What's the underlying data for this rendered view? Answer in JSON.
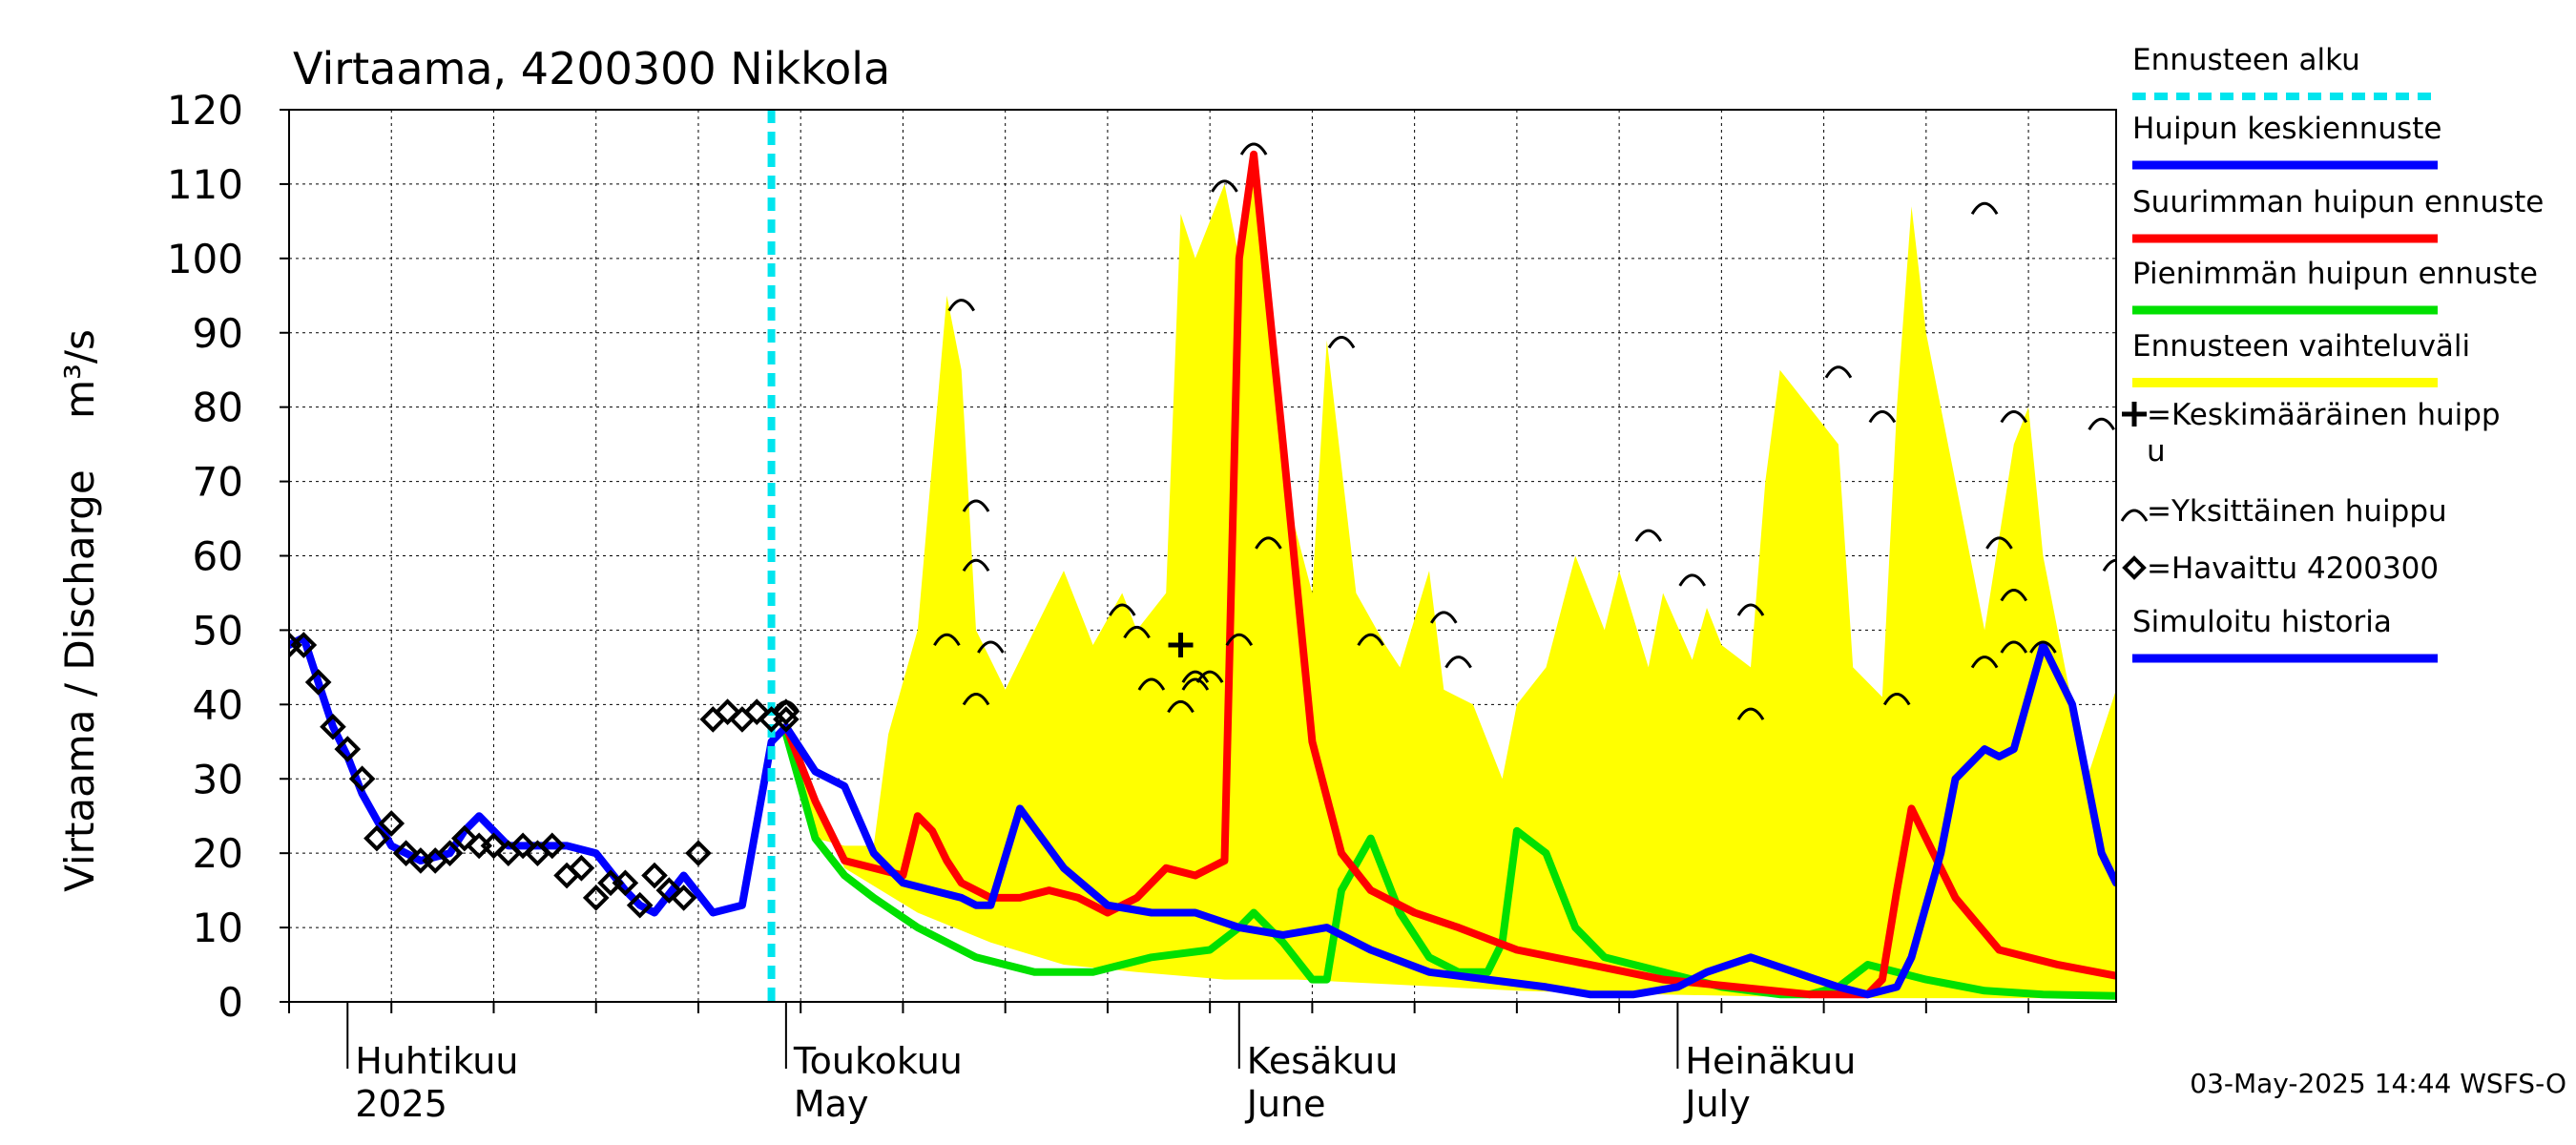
{
  "colors": {
    "forecast_start": "#00e5ee",
    "median_peak": "#0000ff",
    "max_peak": "#ff0000",
    "min_peak": "#00e000",
    "range": "#ffff00",
    "simulated": "#0000ff",
    "observed": "#000000"
  },
  "chart_data": {
    "type": "line",
    "title": "Virtaama, 4200300 Nikkola",
    "ylabel": "Virtaama / Discharge    m³/s",
    "ylim": [
      0,
      120
    ],
    "yticks": [
      0,
      10,
      20,
      30,
      40,
      50,
      60,
      70,
      80,
      90,
      100,
      110,
      120
    ],
    "xlim": [
      "2025-03-28",
      "2025-07-31"
    ],
    "grid": true,
    "legend_position": "right",
    "x_month_labels": [
      {
        "date": "2025-04-01",
        "fi": "Huhtikuu",
        "en": "2025"
      },
      {
        "date": "2025-05-01",
        "fi": "Toukokuu",
        "en": "May"
      },
      {
        "date": "2025-06-01",
        "fi": "Kesäkuu",
        "en": "June"
      },
      {
        "date": "2025-07-01",
        "fi": "Heinäkuu",
        "en": "July"
      }
    ],
    "forecast_start": "2025-04-30",
    "footer": "03-May-2025 14:44 WSFS-O",
    "legend": [
      {
        "key": "forecast_start",
        "label": "Ennusteen alku"
      },
      {
        "key": "median_peak",
        "label": "Huipun keskiennuste"
      },
      {
        "key": "max_peak",
        "label": "Suurimman huipun ennuste"
      },
      {
        "key": "min_peak",
        "label": "Pienimmän huipun ennuste"
      },
      {
        "key": "range",
        "label": "Ennusteen vaihteluväli"
      },
      {
        "key": "mean_peak_marker",
        "label": "=Keskimääräinen huipp",
        "label2": "u"
      },
      {
        "key": "single_peak_marker",
        "label": "=Yksittäinen huippu"
      },
      {
        "key": "observed",
        "label": "=Havaittu 4200300"
      },
      {
        "key": "simulated",
        "label": "Simuloitu historia"
      }
    ],
    "series": [
      {
        "key": "observed",
        "type": "scatter",
        "x": [
          "2025-03-28",
          "2025-03-29",
          "2025-03-30",
          "2025-03-31",
          "2025-04-01",
          "2025-04-02",
          "2025-04-03",
          "2025-04-04",
          "2025-04-05",
          "2025-04-06",
          "2025-04-07",
          "2025-04-08",
          "2025-04-09",
          "2025-04-10",
          "2025-04-11",
          "2025-04-12",
          "2025-04-13",
          "2025-04-14",
          "2025-04-15",
          "2025-04-16",
          "2025-04-17",
          "2025-04-18",
          "2025-04-19",
          "2025-04-20",
          "2025-04-21",
          "2025-04-22",
          "2025-04-23",
          "2025-04-24",
          "2025-04-25",
          "2025-04-26",
          "2025-04-27",
          "2025-04-28",
          "2025-04-29",
          "2025-04-30",
          "2025-05-01",
          "2025-05-01"
        ],
        "y": [
          48,
          48,
          43,
          37,
          34,
          30,
          22,
          24,
          20,
          19,
          19,
          20,
          22,
          21,
          21,
          20,
          21,
          20,
          21,
          17,
          18,
          14,
          16,
          16,
          13,
          17,
          15,
          14,
          20,
          38,
          39,
          38,
          39,
          38,
          38,
          39
        ]
      },
      {
        "key": "range_upper",
        "x": [
          "2025-05-01",
          "2025-05-03",
          "2025-05-05",
          "2025-05-07",
          "2025-05-08",
          "2025-05-10",
          "2025-05-12",
          "2025-05-13",
          "2025-05-14",
          "2025-05-16",
          "2025-05-18",
          "2025-05-20",
          "2025-05-22",
          "2025-05-24",
          "2025-05-25",
          "2025-05-27",
          "2025-05-28",
          "2025-05-29",
          "2025-05-31",
          "2025-06-01",
          "2025-06-02",
          "2025-06-04",
          "2025-06-06",
          "2025-06-07",
          "2025-06-09",
          "2025-06-11",
          "2025-06-12",
          "2025-06-14",
          "2025-06-15",
          "2025-06-17",
          "2025-06-19",
          "2025-06-20",
          "2025-06-22",
          "2025-06-24",
          "2025-06-26",
          "2025-06-27",
          "2025-06-29",
          "2025-06-30",
          "2025-07-02",
          "2025-07-03",
          "2025-07-04",
          "2025-07-06",
          "2025-07-07",
          "2025-07-08",
          "2025-07-10",
          "2025-07-12",
          "2025-07-13",
          "2025-07-15",
          "2025-07-16",
          "2025-07-17",
          "2025-07-18",
          "2025-07-20",
          "2025-07-22",
          "2025-07-24",
          "2025-07-25",
          "2025-07-26",
          "2025-07-28",
          "2025-07-29",
          "2025-07-31"
        ],
        "y": [
          36,
          22,
          21,
          21,
          36,
          50,
          95,
          85,
          50,
          42,
          50,
          58,
          48,
          55,
          50,
          55,
          106,
          100,
          110,
          100,
          112,
          70,
          55,
          89,
          55,
          48,
          45,
          58,
          42,
          40,
          30,
          40,
          45,
          60,
          50,
          58,
          45,
          55,
          46,
          53,
          48,
          45,
          70,
          85,
          80,
          75,
          45,
          41,
          80,
          107,
          90,
          70,
          50,
          75,
          80,
          60,
          40,
          30,
          42
        ]
      },
      {
        "key": "range_lower",
        "x": [
          "2025-05-01",
          "2025-05-05",
          "2025-05-10",
          "2025-05-15",
          "2025-05-20",
          "2025-05-25",
          "2025-05-31",
          "2025-06-05",
          "2025-06-10",
          "2025-06-15",
          "2025-06-20",
          "2025-06-25",
          "2025-06-30",
          "2025-07-05",
          "2025-07-10",
          "2025-07-15",
          "2025-07-20",
          "2025-07-25",
          "2025-07-31"
        ],
        "y": [
          36,
          18,
          12,
          8,
          5,
          4,
          3,
          3,
          2.5,
          2,
          1.5,
          1.2,
          1,
          0.8,
          0.6,
          0.5,
          0.5,
          0.5,
          0.5
        ]
      },
      {
        "key": "max_peak",
        "x": [
          "2025-05-01",
          "2025-05-03",
          "2025-05-05",
          "2025-05-07",
          "2025-05-09",
          "2025-05-10",
          "2025-05-11",
          "2025-05-12",
          "2025-05-13",
          "2025-05-15",
          "2025-05-17",
          "2025-05-19",
          "2025-05-21",
          "2025-05-23",
          "2025-05-25",
          "2025-05-27",
          "2025-05-29",
          "2025-05-31",
          "2025-06-01",
          "2025-06-02",
          "2025-06-04",
          "2025-06-06",
          "2025-06-08",
          "2025-06-10",
          "2025-06-13",
          "2025-06-16",
          "2025-06-20",
          "2025-06-25",
          "2025-06-30",
          "2025-07-05",
          "2025-07-10",
          "2025-07-14",
          "2025-07-15",
          "2025-07-16",
          "2025-07-17",
          "2025-07-18",
          "2025-07-20",
          "2025-07-23",
          "2025-07-27",
          "2025-07-31"
        ],
        "y": [
          37,
          27,
          19,
          18,
          17,
          25,
          23,
          19,
          16,
          14,
          14,
          15,
          14,
          12,
          14,
          18,
          17,
          19,
          100,
          114,
          75,
          35,
          20,
          15,
          12,
          10,
          7,
          5,
          3,
          2,
          1,
          1,
          3,
          15,
          26,
          22,
          14,
          7,
          5,
          3.5
        ]
      },
      {
        "key": "min_peak",
        "x": [
          "2025-05-01",
          "2025-05-03",
          "2025-05-05",
          "2025-05-07",
          "2025-05-10",
          "2025-05-14",
          "2025-05-18",
          "2025-05-22",
          "2025-05-26",
          "2025-05-30",
          "2025-06-01",
          "2025-06-02",
          "2025-06-04",
          "2025-06-06",
          "2025-06-07",
          "2025-06-08",
          "2025-06-10",
          "2025-06-12",
          "2025-06-14",
          "2025-06-16",
          "2025-06-18",
          "2025-06-19",
          "2025-06-20",
          "2025-06-22",
          "2025-06-24",
          "2025-06-26",
          "2025-06-30",
          "2025-07-04",
          "2025-07-08",
          "2025-07-10",
          "2025-07-12",
          "2025-07-14",
          "2025-07-18",
          "2025-07-22",
          "2025-07-26",
          "2025-07-31"
        ],
        "y": [
          36,
          22,
          17,
          14,
          10,
          6,
          4,
          4,
          6,
          7,
          10,
          12,
          8,
          3,
          3,
          15,
          22,
          12,
          6,
          4,
          4,
          8,
          23,
          20,
          10,
          6,
          4,
          2,
          1,
          1,
          2,
          5,
          3,
          1.5,
          1,
          0.8
        ]
      },
      {
        "key": "simulated",
        "x": [
          "2025-03-28",
          "2025-03-29",
          "2025-03-30",
          "2025-03-31",
          "2025-04-01",
          "2025-04-02",
          "2025-04-04",
          "2025-04-06",
          "2025-04-08",
          "2025-04-09",
          "2025-04-10",
          "2025-04-12",
          "2025-04-14",
          "2025-04-16",
          "2025-04-18",
          "2025-04-20",
          "2025-04-21",
          "2025-04-22",
          "2025-04-24",
          "2025-04-26",
          "2025-04-28",
          "2025-04-30",
          "2025-05-01",
          "2025-05-03",
          "2025-05-05",
          "2025-05-07",
          "2025-05-09",
          "2025-05-11",
          "2025-05-13",
          "2025-05-14",
          "2025-05-15",
          "2025-05-17",
          "2025-05-20",
          "2025-05-23",
          "2025-05-26",
          "2025-05-29",
          "2025-06-01",
          "2025-06-04",
          "2025-06-07",
          "2025-06-10",
          "2025-06-14",
          "2025-06-18",
          "2025-06-22",
          "2025-06-25",
          "2025-06-28",
          "2025-07-01",
          "2025-07-03",
          "2025-07-06",
          "2025-07-09",
          "2025-07-12",
          "2025-07-14",
          "2025-07-16",
          "2025-07-17",
          "2025-07-19",
          "2025-07-20",
          "2025-07-22",
          "2025-07-23",
          "2025-07-24",
          "2025-07-26",
          "2025-07-28",
          "2025-07-30",
          "2025-07-31"
        ],
        "y": [
          48,
          49,
          43,
          37,
          33,
          28,
          21,
          19,
          20,
          23,
          25,
          21,
          21,
          21,
          20,
          15,
          13,
          12,
          17,
          12,
          13,
          35,
          37,
          31,
          29,
          20,
          16,
          15,
          14,
          13,
          13,
          26,
          18,
          13,
          12,
          12,
          10,
          9,
          10,
          7,
          4,
          3,
          2,
          1,
          1,
          2,
          4,
          6,
          4,
          2,
          1,
          2,
          6,
          20,
          30,
          34,
          33,
          34,
          48,
          40,
          20,
          16
        ]
      }
    ],
    "single_peaks": [
      {
        "x": "2025-05-01",
        "y": 40
      },
      {
        "x": "2025-05-13",
        "y": 94
      },
      {
        "x": "2025-05-14",
        "y": 67
      },
      {
        "x": "2025-05-14",
        "y": 59
      },
      {
        "x": "2025-05-12",
        "y": 49
      },
      {
        "x": "2025-05-14",
        "y": 41
      },
      {
        "x": "2025-05-15",
        "y": 48
      },
      {
        "x": "2025-05-24",
        "y": 53
      },
      {
        "x": "2025-05-25",
        "y": 50
      },
      {
        "x": "2025-05-26",
        "y": 43
      },
      {
        "x": "2025-05-28",
        "y": 40
      },
      {
        "x": "2025-05-29",
        "y": 43
      },
      {
        "x": "2025-05-29",
        "y": 44
      },
      {
        "x": "2025-05-30",
        "y": 44
      },
      {
        "x": "2025-05-31",
        "y": 110
      },
      {
        "x": "2025-06-01",
        "y": 49
      },
      {
        "x": "2025-06-02",
        "y": 115
      },
      {
        "x": "2025-06-03",
        "y": 62
      },
      {
        "x": "2025-06-08",
        "y": 89
      },
      {
        "x": "2025-06-10",
        "y": 49
      },
      {
        "x": "2025-06-15",
        "y": 52
      },
      {
        "x": "2025-06-16",
        "y": 46
      },
      {
        "x": "2025-06-29",
        "y": 63
      },
      {
        "x": "2025-07-02",
        "y": 57
      },
      {
        "x": "2025-07-06",
        "y": 53
      },
      {
        "x": "2025-07-06",
        "y": 39
      },
      {
        "x": "2025-07-12",
        "y": 85
      },
      {
        "x": "2025-07-15",
        "y": 79
      },
      {
        "x": "2025-07-16",
        "y": 41
      },
      {
        "x": "2025-07-22",
        "y": 107
      },
      {
        "x": "2025-07-22",
        "y": 46
      },
      {
        "x": "2025-07-23",
        "y": 62
      },
      {
        "x": "2025-07-24",
        "y": 79
      },
      {
        "x": "2025-07-24",
        "y": 55
      },
      {
        "x": "2025-07-24",
        "y": 48
      },
      {
        "x": "2025-07-26",
        "y": 48
      },
      {
        "x": "2025-07-30",
        "y": 78
      },
      {
        "x": "2025-07-31",
        "y": 59
      }
    ],
    "mean_peak": {
      "x": "2025-05-28",
      "y": 48
    }
  }
}
